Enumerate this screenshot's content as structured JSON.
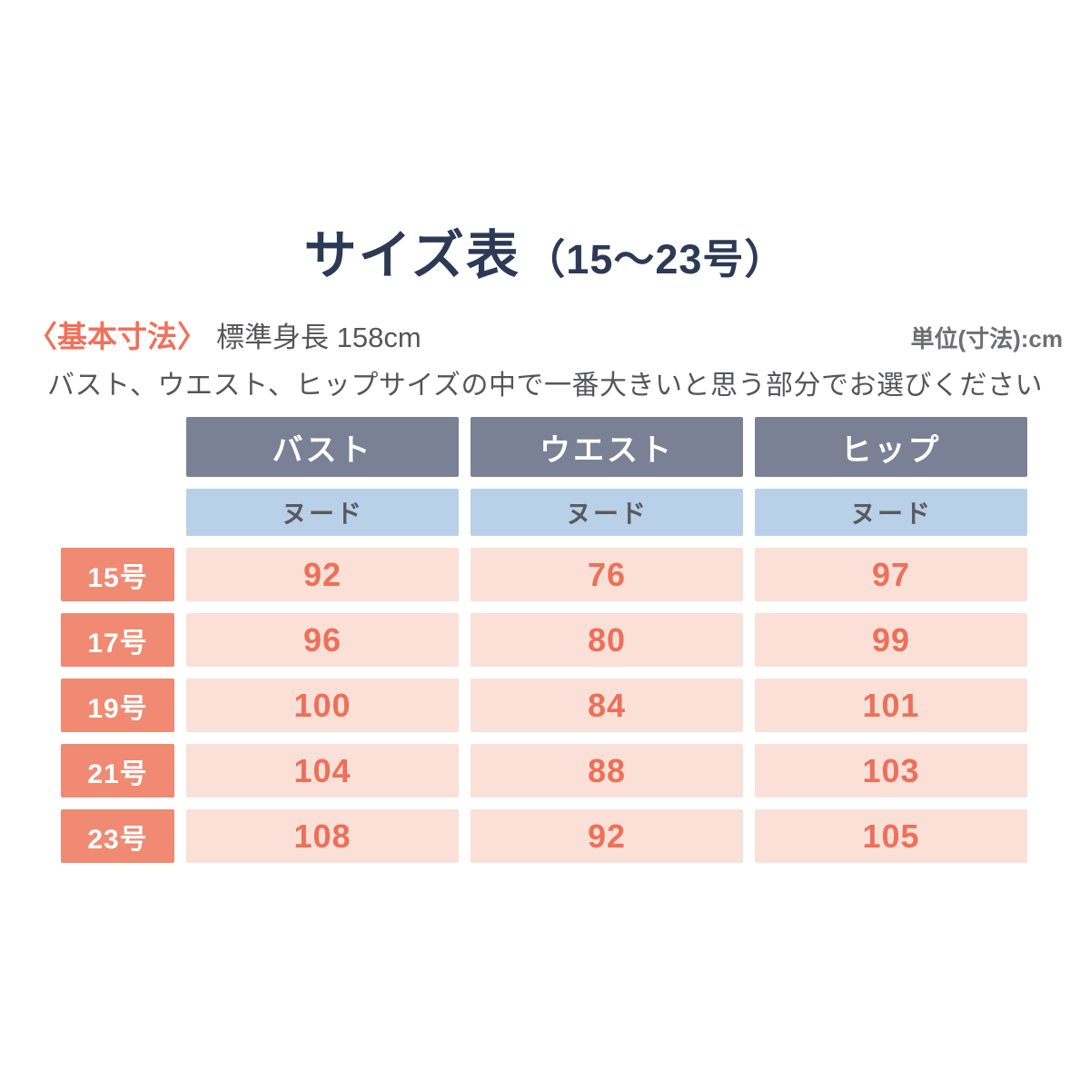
{
  "title": {
    "main": "サイズ表",
    "range": "（15〜23号）"
  },
  "meta": {
    "basic_dimensions_label": "〈基本寸法〉",
    "standard_height": "標準身長 158cm",
    "unit_note": "単位(寸法):cm"
  },
  "description": "バスト、ウエスト、ヒップサイズの中で一番大きいと思う部分でお選びください",
  "chart_data": {
    "type": "table",
    "title": "サイズ表（15〜23号）",
    "unit": "cm",
    "columns": [
      "バスト",
      "ウエスト",
      "ヒップ"
    ],
    "sub_headers": [
      "ヌード",
      "ヌード",
      "ヌード"
    ],
    "rows": [
      {
        "label": "15号",
        "values": [
          92,
          76,
          97
        ]
      },
      {
        "label": "17号",
        "values": [
          96,
          80,
          99
        ]
      },
      {
        "label": "19号",
        "values": [
          100,
          84,
          101
        ]
      },
      {
        "label": "21号",
        "values": [
          104,
          88,
          103
        ]
      },
      {
        "label": "23号",
        "values": [
          108,
          92,
          105
        ]
      }
    ]
  },
  "colors": {
    "page_bg": "#ffffff",
    "title_color": "#2d3a55",
    "accent_color": "#f1705a",
    "text_gray": "#55565a",
    "unit_gray": "#6e6f73",
    "header_bg": "#7a8194",
    "header_text": "#ffffff",
    "nude_bg": "#b8d0e8",
    "nude_text": "#595a5f",
    "label_bg": "#f08a72",
    "label_text": "#ffffff",
    "cell_bg": "#fbe0d8",
    "value_text": "#ed7058"
  }
}
